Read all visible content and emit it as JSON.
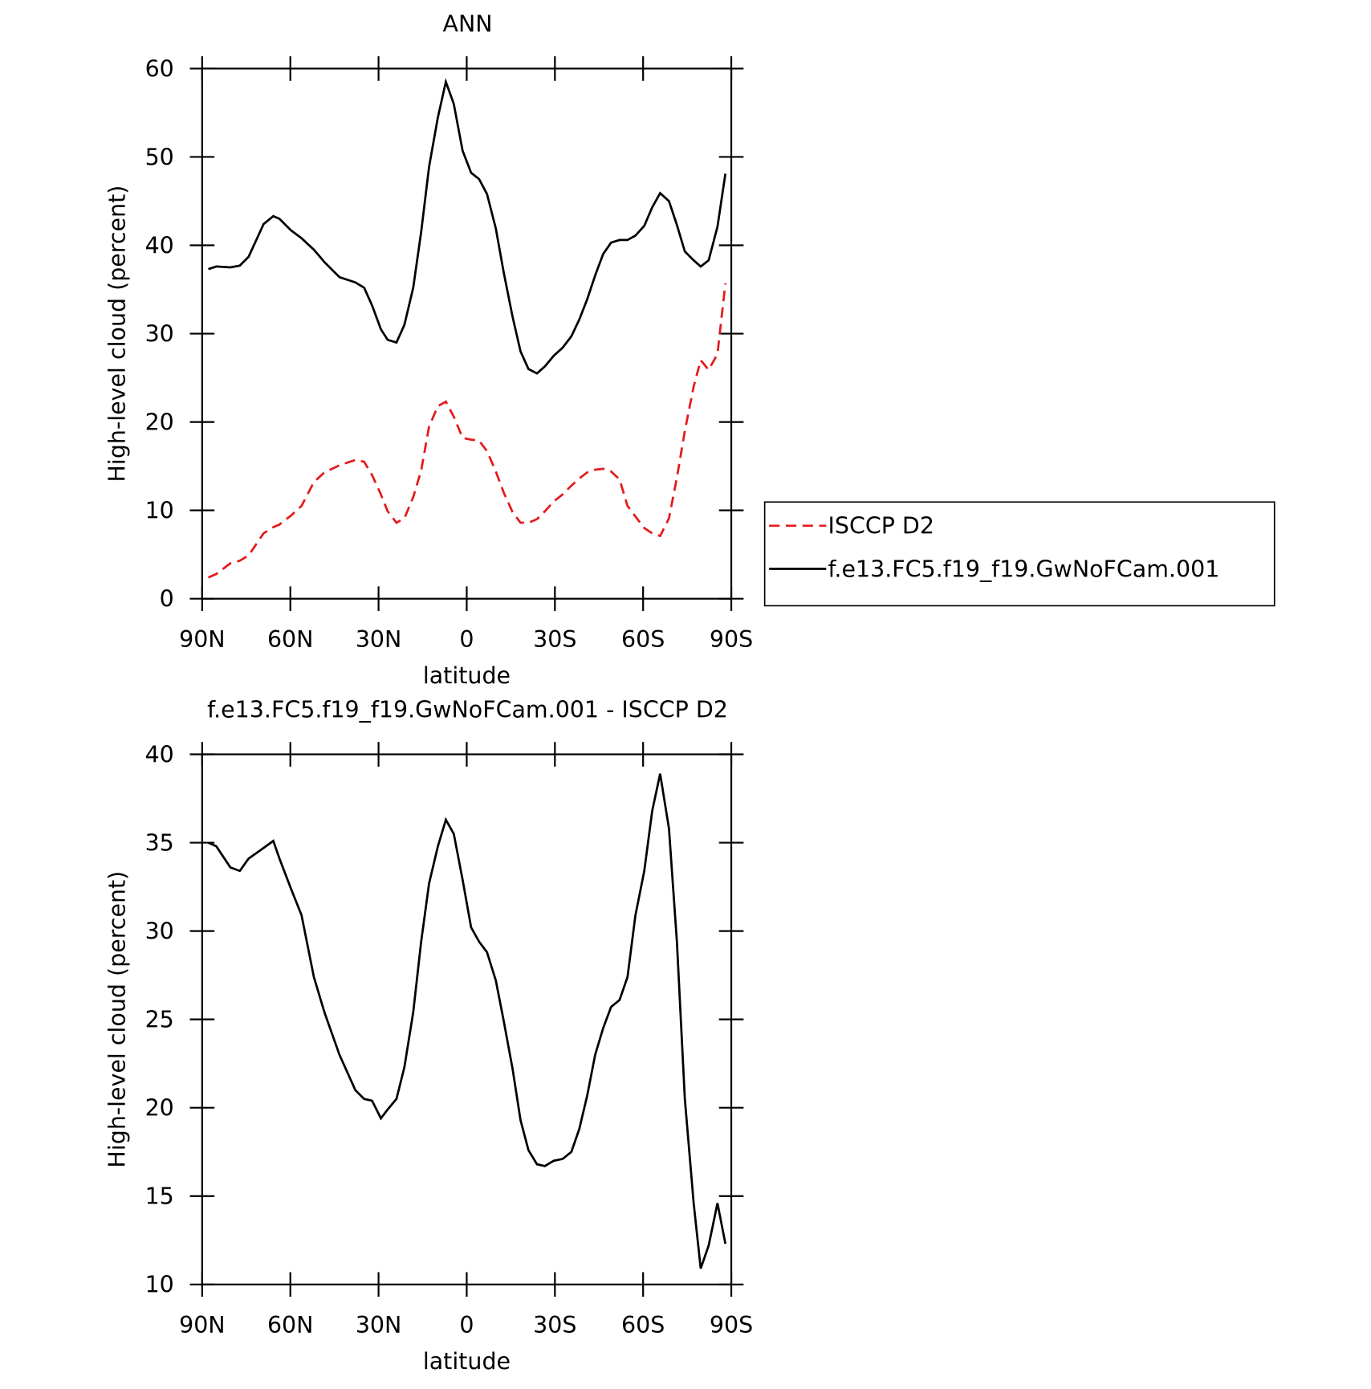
{
  "chart_data": [
    {
      "type": "line",
      "title": "ANN",
      "xlabel": "latitude",
      "ylabel": "High-level cloud (percent)",
      "x": [
        87.9,
        85.2,
        80.4,
        77.2,
        74.2,
        69.1,
        65.8,
        63.7,
        59.8,
        56.2,
        52.0,
        48.4,
        43.3,
        37.9,
        34.9,
        32.2,
        29.2,
        26.9,
        23.9,
        21.2,
        18.2,
        15.5,
        12.8,
        9.8,
        7.1,
        4.4,
        1.4,
        -1.5,
        -4.2,
        -6.9,
        -9.9,
        -12.6,
        -15.6,
        -18.3,
        -21.0,
        -23.9,
        -26.6,
        -29.6,
        -32.6,
        -35.6,
        -38.3,
        -41.0,
        -43.7,
        -46.4,
        -49.1,
        -52.0,
        -54.7,
        -57.4,
        -60.4,
        -63.1,
        -65.8,
        -68.8,
        -71.5,
        -74.2,
        -77.2,
        -79.6,
        -82.3,
        -85.3,
        -88.0
      ],
      "series": [
        {
          "name": "ISCCP D2",
          "color": "#e41a1c",
          "line_style": "dashed",
          "values": [
            2.4,
            2.8,
            4.0,
            4.3,
            4.9,
            7.4,
            8.1,
            8.4,
            9.4,
            10.5,
            13.2,
            14.3,
            15.1,
            15.7,
            15.5,
            14.0,
            11.8,
            9.9,
            8.6,
            9.1,
            11.5,
            14.5,
            19.5,
            21.8,
            22.3,
            20.6,
            18.2,
            18.0,
            17.9,
            16.7,
            14.4,
            12.0,
            9.8,
            8.6,
            8.6,
            9.0,
            9.9,
            11.0,
            11.8,
            12.8,
            13.6,
            14.3,
            14.6,
            14.7,
            14.4,
            13.5,
            10.5,
            9.3,
            8.0,
            7.4,
            7.1,
            9.1,
            13.7,
            19.0,
            24.0,
            27.0,
            25.9,
            27.7,
            35.7
          ]
        },
        {
          "name": "f.e13.FC5.f19_f19.GwNoFCam.001",
          "color": "#000000",
          "line_style": "solid",
          "values": [
            37.3,
            37.6,
            37.5,
            37.7,
            38.7,
            42.4,
            43.3,
            43.0,
            41.7,
            40.8,
            39.5,
            38.1,
            36.4,
            35.8,
            35.2,
            33.2,
            30.5,
            29.3,
            29.0,
            31.0,
            35.2,
            41.5,
            48.9,
            54.5,
            58.5,
            56.0,
            50.7,
            48.2,
            47.5,
            45.8,
            41.9,
            36.9,
            31.9,
            28.0,
            26.0,
            25.5,
            26.3,
            27.5,
            28.4,
            29.7,
            31.6,
            33.9,
            36.6,
            39.0,
            40.3,
            40.6,
            40.6,
            41.1,
            42.2,
            44.3,
            45.9,
            45.0,
            42.3,
            39.3,
            38.3,
            37.6,
            38.3,
            42.1,
            48.1
          ]
        }
      ],
      "xlim": [
        90,
        -90
      ],
      "xticks": [
        {
          "value": 90,
          "label": "90N"
        },
        {
          "value": 60,
          "label": "60N"
        },
        {
          "value": 30,
          "label": "30N"
        },
        0,
        {
          "value": -30,
          "label": "30S"
        },
        {
          "value": -60,
          "label": "60S"
        },
        {
          "value": -90,
          "label": "90S"
        }
      ],
      "ylim": [
        0,
        60
      ],
      "yticks": [
        0,
        10,
        20,
        30,
        40,
        50,
        60
      ],
      "legend": "right"
    },
    {
      "type": "line",
      "title": "f.e13.FC5.f19_f19.GwNoFCam.001 - ISCCP D2",
      "xlabel": "latitude",
      "ylabel": "High-level cloud (percent)",
      "x": [
        87.9,
        85.2,
        80.4,
        77.2,
        74.2,
        69.1,
        65.8,
        63.7,
        59.8,
        56.2,
        52.0,
        48.4,
        43.3,
        37.9,
        34.9,
        32.2,
        29.2,
        26.9,
        23.9,
        21.2,
        18.2,
        15.5,
        12.8,
        9.8,
        7.1,
        4.4,
        1.4,
        -1.5,
        -4.2,
        -6.9,
        -9.9,
        -12.6,
        -15.6,
        -18.3,
        -21.0,
        -23.9,
        -26.6,
        -29.6,
        -32.6,
        -35.6,
        -38.3,
        -41.0,
        -43.7,
        -46.4,
        -49.1,
        -52.0,
        -54.7,
        -57.4,
        -60.4,
        -63.1,
        -65.8,
        -68.8,
        -71.5,
        -74.2,
        -77.2,
        -79.6,
        -82.3,
        -85.3,
        -88.0
      ],
      "series": [
        {
          "color": "#000000",
          "line_style": "solid",
          "values": [
            35.0,
            34.8,
            33.6,
            33.4,
            34.1,
            34.7,
            35.1,
            34.1,
            32.4,
            30.9,
            27.4,
            25.4,
            23.0,
            21.0,
            20.5,
            20.4,
            19.4,
            19.9,
            20.5,
            22.3,
            25.4,
            29.4,
            32.7,
            34.8,
            36.3,
            35.5,
            32.9,
            30.2,
            29.4,
            28.8,
            27.2,
            24.9,
            22.2,
            19.3,
            17.6,
            16.8,
            16.7,
            17.0,
            17.1,
            17.5,
            18.8,
            20.7,
            23.0,
            24.5,
            25.7,
            26.1,
            27.4,
            30.9,
            33.4,
            36.8,
            38.9,
            35.8,
            29.4,
            20.5,
            14.6,
            10.9,
            12.2,
            14.6,
            12.3
          ]
        }
      ],
      "xlim": [
        90,
        -90
      ],
      "xticks": [
        {
          "value": 90,
          "label": "90N"
        },
        {
          "value": 60,
          "label": "60N"
        },
        {
          "value": 30,
          "label": "30N"
        },
        0,
        {
          "value": -30,
          "label": "30S"
        },
        {
          "value": -60,
          "label": "60S"
        },
        {
          "value": -90,
          "label": "90S"
        }
      ],
      "ylim": [
        10,
        40
      ],
      "yticks": [
        10,
        15,
        20,
        25,
        30,
        35,
        40
      ]
    }
  ]
}
